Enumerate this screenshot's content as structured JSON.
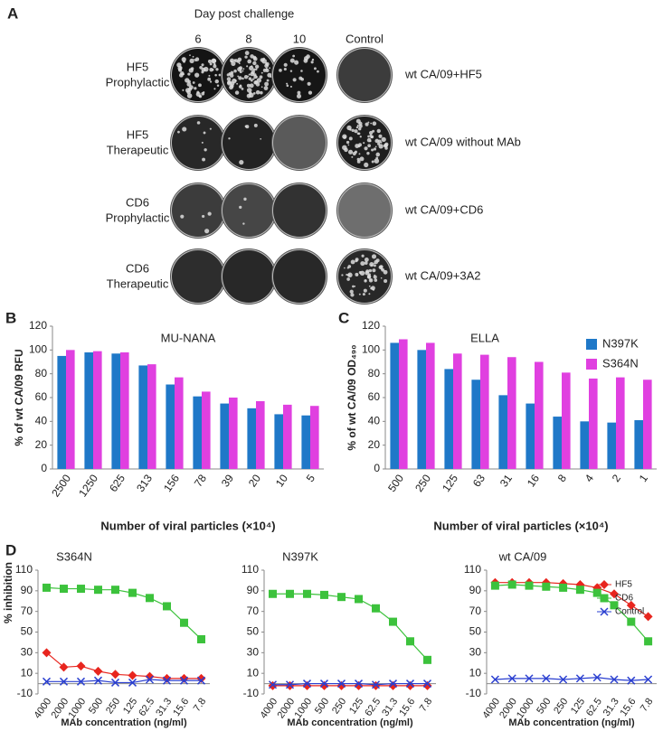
{
  "panel_labels": [
    "A",
    "B",
    "C",
    "D"
  ],
  "panel_a": {
    "header": "Day post challenge",
    "columns": [
      "6",
      "8",
      "10",
      "Control"
    ],
    "rows": [
      {
        "label": [
          "HF5",
          "Prophylactic"
        ],
        "control": "wt CA/09+HF5"
      },
      {
        "label": [
          "HF5",
          "Therapeutic"
        ],
        "control": "wt CA/09 without MAb"
      },
      {
        "label": [
          "CD6",
          "Prophylactic"
        ],
        "control": "wt CA/09+CD6"
      },
      {
        "label": [
          "CD6",
          "Therapeutic"
        ],
        "control": "wt CA/09+3A2"
      }
    ]
  },
  "chart_data": [
    {
      "type": "bar",
      "title": "MU-NANA",
      "x_label": "Number of viral particles (×10⁴)",
      "y_label": "% of wt CA/09 RFU",
      "categories": [
        "2500",
        "1250",
        "625",
        "313",
        "156",
        "78",
        "39",
        "20",
        "10",
        "5"
      ],
      "series": [
        {
          "color": "#1f78c8",
          "values": [
            95,
            98,
            97,
            87,
            71,
            61,
            55,
            51,
            46,
            45
          ]
        },
        {
          "color": "#e040e0",
          "values": [
            100,
            99,
            98,
            88,
            77,
            65,
            60,
            57,
            54,
            53
          ]
        }
      ],
      "ylim": [
        0,
        120
      ],
      "yticks": [
        0,
        20,
        40,
        60,
        80,
        100,
        120
      ]
    },
    {
      "type": "bar",
      "title": "ELLA",
      "x_label": "Number of viral particles (×10⁴)",
      "y_label": "% of wt CA/09 OD₄₉₀",
      "categories": [
        "500",
        "250",
        "125",
        "63",
        "31",
        "16",
        "8",
        "4",
        "2",
        "1"
      ],
      "series": [
        {
          "name": "N397K",
          "color": "#1f78c8",
          "values": [
            106,
            100,
            84,
            75,
            62,
            55,
            44,
            40,
            39,
            41
          ]
        },
        {
          "name": "S364N",
          "color": "#e040e0",
          "values": [
            109,
            106,
            97,
            96,
            94,
            90,
            81,
            76,
            77,
            75
          ]
        }
      ],
      "ylim": [
        0,
        120
      ],
      "yticks": [
        0,
        20,
        40,
        60,
        80,
        100,
        120
      ],
      "legend": "top-right"
    },
    {
      "type": "line",
      "title": "S364N",
      "x_label": "MAb concentration (ng/ml)",
      "y_label": "% inhibition",
      "categories": [
        "4000",
        "2000",
        "1000",
        "500",
        "250",
        "125",
        "62.5",
        "31.3",
        "15.6",
        "7.8"
      ],
      "series": [
        {
          "color": "#e8251e",
          "marker": "diamond",
          "values": [
            30,
            16,
            17,
            12,
            9,
            8,
            7,
            5,
            5,
            5
          ]
        },
        {
          "color": "#3cc23c",
          "marker": "square",
          "values": [
            93,
            92,
            92,
            91,
            91,
            88,
            83,
            75,
            59,
            43
          ]
        },
        {
          "color": "#2a3fd0",
          "marker": "x",
          "values": [
            2,
            2,
            2,
            3,
            1,
            1,
            4,
            3,
            3,
            3
          ]
        }
      ],
      "ylim": [
        -10,
        110
      ],
      "yticks": [
        -10,
        10,
        30,
        50,
        70,
        90,
        110
      ]
    },
    {
      "type": "line",
      "title": "N397K",
      "x_label": "MAb concentration (ng/ml)",
      "categories": [
        "4000",
        "2000",
        "1000",
        "500",
        "250",
        "125",
        "62.5",
        "31.3",
        "15.6",
        "7.8"
      ],
      "series": [
        {
          "color": "#e8251e",
          "marker": "diamond",
          "values": [
            -2,
            -2,
            -2,
            -2,
            -2,
            -2,
            -2,
            -2,
            -2,
            -2
          ]
        },
        {
          "color": "#3cc23c",
          "marker": "square",
          "values": [
            87,
            87,
            87,
            86,
            84,
            82,
            73,
            60,
            41,
            23
          ]
        },
        {
          "color": "#2a3fd0",
          "marker": "x",
          "values": [
            -1,
            -1,
            0,
            0,
            0,
            0,
            -1,
            0,
            0,
            0
          ]
        }
      ],
      "ylim": [
        -10,
        110
      ],
      "yticks": [
        -10,
        10,
        30,
        50,
        70,
        90,
        110
      ]
    },
    {
      "type": "line",
      "title": "wt CA/09",
      "x_label": "MAb concentration (ng/ml)",
      "categories": [
        "4000",
        "2000",
        "1000",
        "500",
        "250",
        "125",
        "62.5",
        "31.3",
        "15.6",
        "7.8"
      ],
      "series": [
        {
          "name": "HF5",
          "color": "#e8251e",
          "marker": "diamond",
          "values": [
            98,
            98,
            98,
            98,
            97,
            96,
            93,
            87,
            76,
            65
          ]
        },
        {
          "name": "CD6",
          "color": "#3cc23c",
          "marker": "square",
          "values": [
            95,
            96,
            95,
            94,
            93,
            91,
            88,
            76,
            60,
            41
          ]
        },
        {
          "name": "Control",
          "color": "#2a3fd0",
          "marker": "x",
          "values": [
            4,
            5,
            5,
            5,
            4,
            5,
            6,
            4,
            3,
            4
          ]
        }
      ],
      "ylim": [
        -10,
        110
      ],
      "yticks": [
        -10,
        10,
        30,
        50,
        70,
        90,
        110
      ],
      "legend": "top-right"
    }
  ]
}
